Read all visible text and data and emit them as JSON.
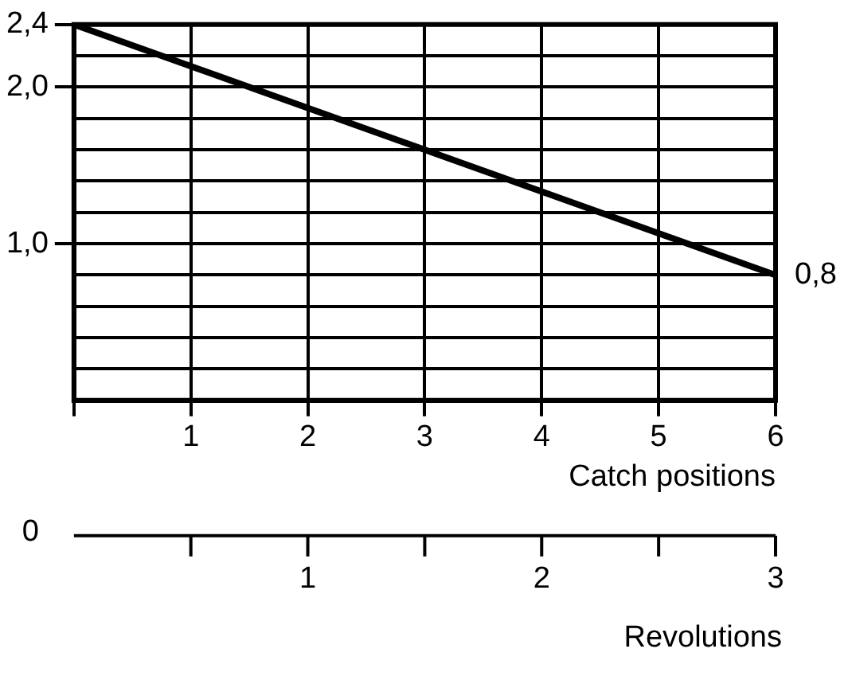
{
  "chart_data": {
    "type": "line",
    "x": [
      0,
      6
    ],
    "values": [
      2.4,
      0.8
    ],
    "color": "#000000",
    "xlim": [
      0,
      6
    ],
    "xticks": [
      {
        "value": 0,
        "label": null
      },
      1,
      2,
      3,
      4,
      5,
      6
    ],
    "ylim": [
      0,
      2.4
    ],
    "yticks": [
      {
        "value": 0,
        "label": null
      },
      {
        "value": 0.2,
        "label": null
      },
      {
        "value": 0.4,
        "label": null
      },
      {
        "value": 0.6,
        "label": null
      },
      {
        "value": 0.8,
        "label": null
      },
      {
        "value": 1.0,
        "label": "1,0"
      },
      {
        "value": 1.2,
        "label": null
      },
      {
        "value": 1.4,
        "label": null
      },
      {
        "value": 1.6,
        "label": null
      },
      {
        "value": 1.8,
        "label": null
      },
      {
        "value": 2.0,
        "label": "2,0"
      },
      {
        "value": 2.2,
        "label": null
      },
      {
        "value": 2.4,
        "label": "2,4"
      }
    ],
    "xlabel": "Catch positions",
    "x2lim": [
      0,
      3
    ],
    "x2ticks": [
      {
        "value": 0,
        "label": null
      },
      {
        "value": 0.5,
        "label": null
      },
      1,
      {
        "value": 1.5,
        "label": null
      },
      2,
      {
        "value": 2.5,
        "label": null
      },
      3
    ],
    "x2label": "Revolutions",
    "annotations": [
      {
        "text": "0,8",
        "x": 6,
        "y": 0.8
      },
      "0"
    ],
    "grid": true,
    "marker": "none",
    "line_style": "solid",
    "legend": false
  }
}
